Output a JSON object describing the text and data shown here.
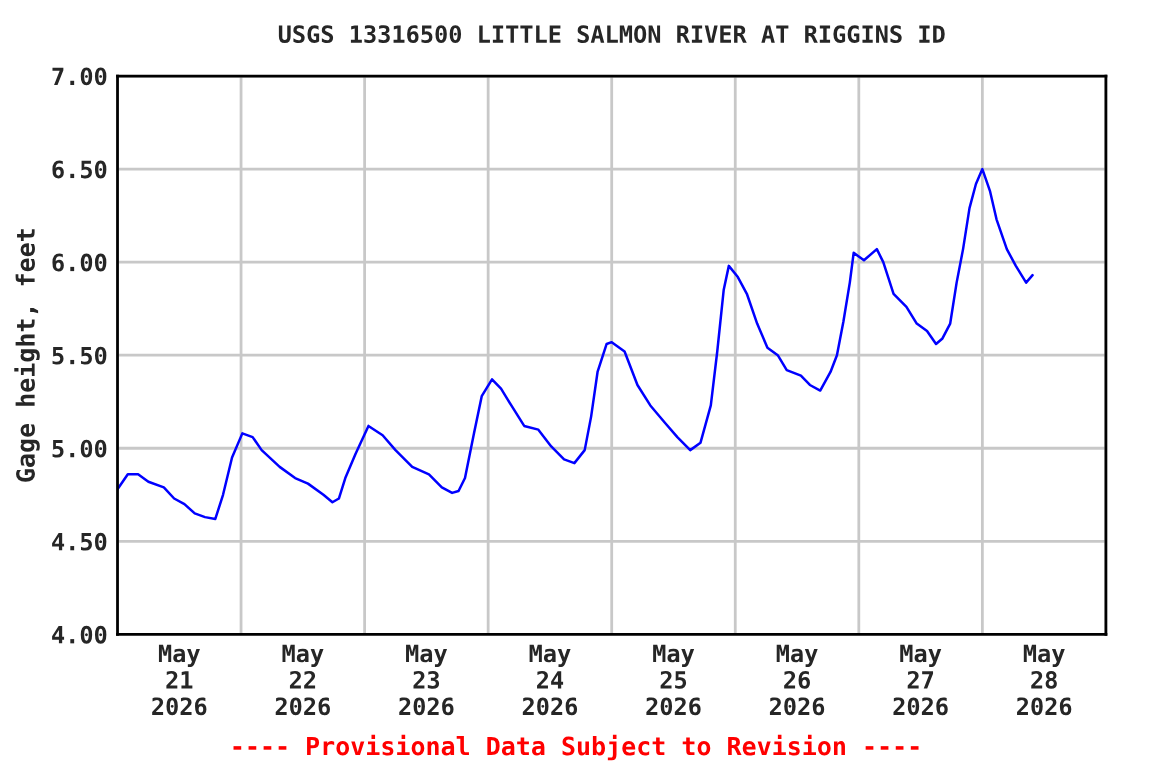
{
  "chart_data": {
    "type": "line",
    "title": "USGS 13316500 LITTLE SALMON RIVER AT RIGGINS ID",
    "ylabel": "Gage height, feet",
    "annotations": [
      "---- Provisional Data Subject to Revision ----"
    ],
    "x": [
      "2026-05-21T00:00",
      "2026-05-21T02:00",
      "2026-05-21T04:00",
      "2026-05-21T06:00",
      "2026-05-21T09:00",
      "2026-05-21T11:00",
      "2026-05-21T13:00",
      "2026-05-21T15:00",
      "2026-05-21T17:00",
      "2026-05-21T19:00",
      "2026-05-21T20:30",
      "2026-05-21T22:15",
      "2026-05-22T00:15",
      "2026-05-22T02:15",
      "2026-05-22T04:00",
      "2026-05-22T07:30",
      "2026-05-22T10:30",
      "2026-05-22T13:00",
      "2026-05-22T16:00",
      "2026-05-22T17:45",
      "2026-05-22T19:00",
      "2026-05-22T20:15",
      "2026-05-22T22:15",
      "2026-05-23T00:45",
      "2026-05-23T03:30",
      "2026-05-23T06:00",
      "2026-05-23T09:15",
      "2026-05-23T12:30",
      "2026-05-23T15:00",
      "2026-05-23T17:00",
      "2026-05-23T18:15",
      "2026-05-23T19:30",
      "2026-05-23T21:15",
      "2026-05-23T22:45",
      "2026-05-24T00:45",
      "2026-05-24T02:30",
      "2026-05-24T04:30",
      "2026-05-24T07:00",
      "2026-05-24T09:45",
      "2026-05-24T12:15",
      "2026-05-24T14:45",
      "2026-05-24T16:45",
      "2026-05-24T18:45",
      "2026-05-24T20:00",
      "2026-05-24T21:15",
      "2026-05-24T23:00",
      "2026-05-25T00:00",
      "2026-05-25T02:30",
      "2026-05-25T05:00",
      "2026-05-25T07:30",
      "2026-05-25T10:15",
      "2026-05-25T12:45",
      "2026-05-25T15:15",
      "2026-05-25T17:15",
      "2026-05-25T19:15",
      "2026-05-25T20:30",
      "2026-05-25T21:45",
      "2026-05-25T22:45",
      "2026-05-26T00:30",
      "2026-05-26T02:15",
      "2026-05-26T04:15",
      "2026-05-26T06:15",
      "2026-05-26T08:15",
      "2026-05-26T10:00",
      "2026-05-26T12:45",
      "2026-05-26T14:30",
      "2026-05-26T16:30",
      "2026-05-26T18:30",
      "2026-05-26T19:45",
      "2026-05-26T21:00",
      "2026-05-26T22:15",
      "2026-05-26T23:00",
      "2026-05-27T01:00",
      "2026-05-27T03:30",
      "2026-05-27T04:45",
      "2026-05-27T06:45",
      "2026-05-27T09:15",
      "2026-05-27T11:15",
      "2026-05-27T13:15",
      "2026-05-27T15:00",
      "2026-05-27T16:15",
      "2026-05-27T17:45",
      "2026-05-27T19:00",
      "2026-05-27T20:15",
      "2026-05-27T21:30",
      "2026-05-27T22:45",
      "2026-05-28T00:00",
      "2026-05-28T01:30",
      "2026-05-28T02:45",
      "2026-05-28T04:45",
      "2026-05-28T06:30",
      "2026-05-28T08:30",
      "2026-05-28T09:45"
    ],
    "series": [
      {
        "color": "#0000ff",
        "values": [
          4.78,
          4.86,
          4.86,
          4.82,
          4.79,
          4.73,
          4.7,
          4.65,
          4.63,
          4.62,
          4.75,
          4.95,
          5.08,
          5.06,
          4.99,
          4.9,
          4.84,
          4.81,
          4.75,
          4.71,
          4.73,
          4.84,
          4.97,
          5.12,
          5.07,
          4.99,
          4.9,
          4.86,
          4.79,
          4.76,
          4.77,
          4.84,
          5.08,
          5.28,
          5.37,
          5.32,
          5.23,
          5.12,
          5.1,
          5.01,
          4.94,
          4.92,
          4.99,
          5.17,
          5.41,
          5.56,
          5.57,
          5.52,
          5.34,
          5.23,
          5.14,
          5.06,
          4.99,
          5.03,
          5.23,
          5.52,
          5.85,
          5.98,
          5.92,
          5.83,
          5.67,
          5.54,
          5.5,
          5.42,
          5.39,
          5.34,
          5.31,
          5.41,
          5.5,
          5.68,
          5.89,
          6.05,
          6.01,
          6.07,
          6.0,
          5.83,
          5.76,
          5.67,
          5.63,
          5.56,
          5.59,
          5.67,
          5.89,
          6.07,
          6.29,
          6.42,
          6.5,
          6.38,
          6.23,
          6.07,
          5.98,
          5.89,
          5.93
        ]
      }
    ],
    "xlim": [
      "2026-05-21",
      "2026-05-29"
    ],
    "xticks": [
      {
        "value": "2026-05-21T00:00",
        "label": null
      },
      {
        "value": "2026-05-21T12:00",
        "label": "May\n21\n2026"
      },
      {
        "value": "2026-05-22T00:00",
        "label": null
      },
      {
        "value": "2026-05-22T12:00",
        "label": "May\n22\n2026"
      },
      {
        "value": "2026-05-23T00:00",
        "label": null
      },
      {
        "value": "2026-05-23T12:00",
        "label": "May\n23\n2026"
      },
      {
        "value": "2026-05-24T00:00",
        "label": null
      },
      {
        "value": "2026-05-24T12:00",
        "label": "May\n24\n2026"
      },
      {
        "value": "2026-05-25T00:00",
        "label": null
      },
      {
        "value": "2026-05-25T12:00",
        "label": "May\n25\n2026"
      },
      {
        "value": "2026-05-26T00:00",
        "label": null
      },
      {
        "value": "2026-05-26T12:00",
        "label": "May\n26\n2026"
      },
      {
        "value": "2026-05-27T00:00",
        "label": null
      },
      {
        "value": "2026-05-27T12:00",
        "label": "May\n27\n2026"
      },
      {
        "value": "2026-05-28T00:00",
        "label": null
      },
      {
        "value": "2026-05-28T12:00",
        "label": "May\n28\n2026"
      },
      {
        "value": "2026-05-29T00:00",
        "label": null
      }
    ],
    "ylim": [
      4,
      7
    ],
    "yticks": [
      {
        "value": 4,
        "label": "4.00"
      },
      {
        "value": 4.5,
        "label": "4.50"
      },
      {
        "value": 5,
        "label": "5.00"
      },
      {
        "value": 5.5,
        "label": "5.50"
      },
      {
        "value": 6,
        "label": "6.00"
      },
      {
        "value": 6.5,
        "label": "6.50"
      },
      {
        "value": 7,
        "label": "7.00"
      }
    ],
    "grid": true,
    "marker": "none",
    "line_style": "solid",
    "legend": false
  }
}
